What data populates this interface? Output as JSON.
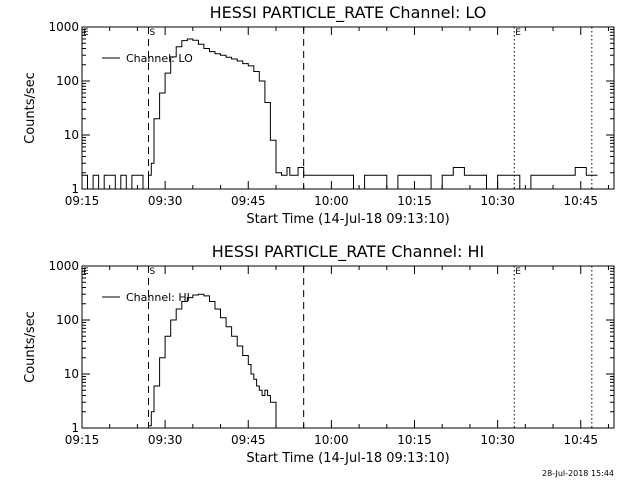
{
  "footer": {
    "timestamp": "28-Jul-2018 15:44"
  },
  "chart_data": [
    {
      "type": "line",
      "title": "HESSI PARTICLE_RATE Channel: LO",
      "xlabel": "Start Time (14-Jul-18 09:13:10)",
      "ylabel": "Counts/sec",
      "xlim": [
        "09:15",
        "10:51"
      ],
      "ylim": [
        1,
        1000
      ],
      "yscale": "log",
      "x_ticks": [
        "09:15",
        "09:30",
        "09:45",
        "10:00",
        "10:15",
        "10:30",
        "10:45"
      ],
      "y_ticks": [
        "1",
        "10",
        "100",
        "1000"
      ],
      "grid": false,
      "legend_position": "top-left",
      "series": [
        {
          "name": "Channel: LO",
          "x": [
            "09:15",
            "09:16",
            "09:17",
            "09:18",
            "09:19",
            "09:20",
            "09:21",
            "09:22",
            "09:23",
            "09:24",
            "09:25",
            "09:26",
            "09:27",
            "09:27.5",
            "09:28",
            "09:29",
            "09:30",
            "09:31",
            "09:32",
            "09:33",
            "09:34",
            "09:35",
            "09:36",
            "09:37",
            "09:38",
            "09:39",
            "09:40",
            "09:41",
            "09:42",
            "09:43",
            "09:44",
            "09:45",
            "09:46",
            "09:47",
            "09:48",
            "09:49",
            "09:50",
            "09:51",
            "09:52",
            "09:52.5",
            "09:53",
            "09:54",
            "09:55",
            "09:56",
            "09:57",
            "09:58",
            "09:59",
            "10:00",
            "10:02",
            "10:04",
            "10:06",
            "10:08",
            "10:10",
            "10:12",
            "10:14",
            "10:16",
            "10:18",
            "10:20",
            "10:22",
            "10:24",
            "10:26",
            "10:28",
            "10:30",
            "10:32",
            "10:34",
            "10:36",
            "10:38",
            "10:40",
            "10:42",
            "10:44",
            "10:46",
            "10:48"
          ],
          "y": [
            1.8,
            1,
            1.8,
            1,
            1.8,
            1.8,
            1,
            1.8,
            1,
            1.8,
            1.8,
            1,
            1.8,
            3,
            20,
            60,
            140,
            280,
            430,
            560,
            600,
            570,
            480,
            400,
            350,
            320,
            300,
            275,
            255,
            235,
            210,
            190,
            150,
            100,
            40,
            8,
            2,
            1.8,
            2.5,
            1.8,
            1.8,
            2.5,
            1.8,
            1.8,
            1.8,
            1.8,
            1.8,
            1.8,
            1.8,
            1,
            1.8,
            1.8,
            1,
            1.8,
            1.8,
            1.8,
            1,
            1.8,
            2.5,
            1.8,
            1.8,
            1,
            1.8,
            1.8,
            1,
            1.8,
            1.8,
            1.8,
            1.8,
            2.5,
            1.8,
            1.8
          ]
        }
      ],
      "annotations": [
        {
          "label": "E",
          "x": "09:15",
          "style": "solid"
        },
        {
          "label": "S",
          "x": "09:27",
          "style": "dashed"
        },
        {
          "label": "",
          "x": "09:55",
          "style": "dashed"
        },
        {
          "label": "E",
          "x": "10:33",
          "style": "dotted"
        },
        {
          "label": "",
          "x": "10:47",
          "style": "dotted"
        }
      ]
    },
    {
      "type": "line",
      "title": "HESSI PARTICLE_RATE Channel: HI",
      "xlabel": "Start Time (14-Jul-18 09:13:10)",
      "ylabel": "Counts/sec",
      "xlim": [
        "09:15",
        "10:51"
      ],
      "ylim": [
        1,
        1000
      ],
      "yscale": "log",
      "x_ticks": [
        "09:15",
        "09:30",
        "09:45",
        "10:00",
        "10:15",
        "10:30",
        "10:45"
      ],
      "y_ticks": [
        "1",
        "10",
        "100",
        "1000"
      ],
      "grid": false,
      "legend_position": "top-left",
      "series": [
        {
          "name": "Channel: HI",
          "x": [
            "09:27",
            "09:27.5",
            "09:28",
            "09:29",
            "09:30",
            "09:31",
            "09:32",
            "09:33",
            "09:34",
            "09:35",
            "09:36",
            "09:37",
            "09:38",
            "09:39",
            "09:40",
            "09:41",
            "09:42",
            "09:43",
            "09:44",
            "09:45",
            "09:45.5",
            "09:46",
            "09:46.5",
            "09:47",
            "09:47.5",
            "09:48",
            "09:48.5",
            "09:49",
            "09:50"
          ],
          "y": [
            1.1,
            2,
            6,
            20,
            50,
            100,
            160,
            220,
            260,
            290,
            300,
            280,
            220,
            160,
            110,
            75,
            50,
            33,
            22,
            15,
            10,
            8,
            6,
            5,
            4,
            5,
            4,
            3,
            1
          ]
        }
      ],
      "annotations": [
        {
          "label": "E",
          "x": "09:15",
          "style": "solid"
        },
        {
          "label": "S",
          "x": "09:27",
          "style": "dashed"
        },
        {
          "label": "",
          "x": "09:55",
          "style": "dashed"
        },
        {
          "label": "E",
          "x": "10:33",
          "style": "dotted"
        },
        {
          "label": "",
          "x": "10:47",
          "style": "dotted"
        }
      ]
    }
  ]
}
